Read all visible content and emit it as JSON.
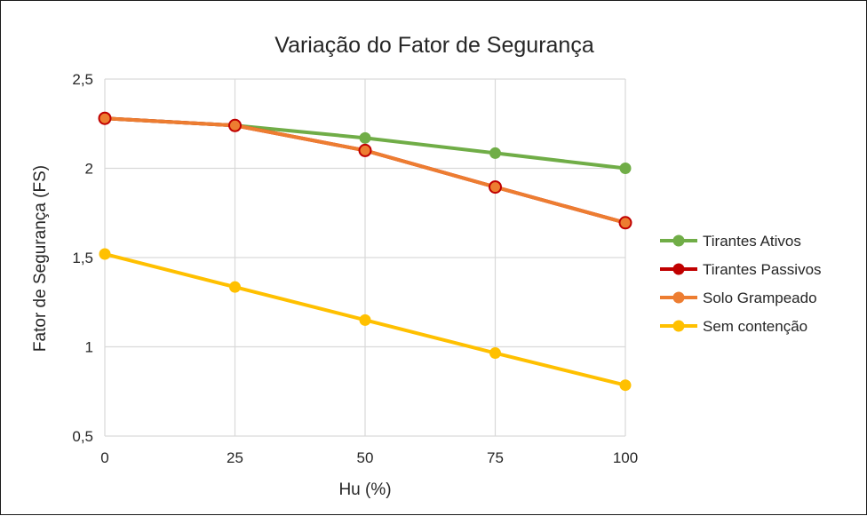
{
  "chart_data": {
    "type": "line",
    "title": "Variação do Fator de Segurança",
    "xlabel": "Hu (%)",
    "ylabel": "Fator de Segurança (FS)",
    "x": [
      0,
      25,
      50,
      75,
      100
    ],
    "x_tick_labels": [
      "0",
      "25",
      "50",
      "75",
      "100"
    ],
    "y_tick_labels": [
      "0,5",
      "1",
      "1,5",
      "2",
      "2,5"
    ],
    "y_ticks": [
      0.5,
      1,
      1.5,
      2,
      2.5
    ],
    "ylim": [
      0.5,
      2.5
    ],
    "xlim": [
      0,
      100
    ],
    "grid": true,
    "legend_position": "right",
    "series": [
      {
        "name": "Tirantes Ativos",
        "color": "#70ad47",
        "values": [
          2.28,
          2.24,
          2.17,
          2.085,
          2.0
        ]
      },
      {
        "name": "Tirantes Passivos",
        "color": "#c00000",
        "values": [
          2.28,
          2.24,
          2.1,
          1.895,
          1.695
        ]
      },
      {
        "name": "Solo Grampeado",
        "color": "#ed7d31",
        "values": [
          2.28,
          2.24,
          2.1,
          1.895,
          1.695
        ]
      },
      {
        "name": "Sem contenção",
        "color": "#ffc000",
        "values": [
          1.52,
          1.335,
          1.15,
          0.965,
          0.785
        ]
      }
    ]
  }
}
